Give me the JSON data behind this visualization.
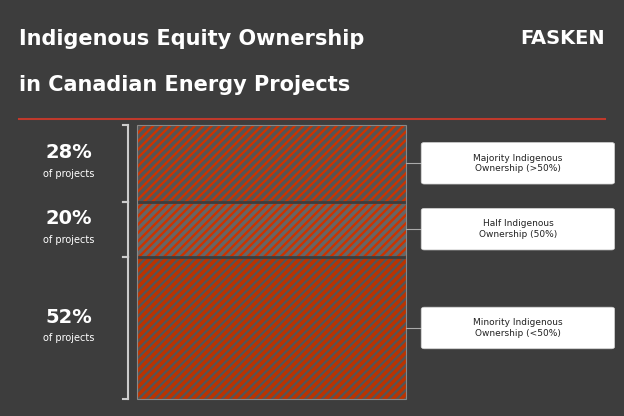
{
  "title_line1": "Indigenous Equity Ownership",
  "title_line2": "in Canadian Energy Projects",
  "brand": "FASKEN",
  "bg_color": "#3d3d3d",
  "title_color": "#ffffff",
  "brand_color": "#ffffff",
  "separator_color": "#c0392b",
  "bar_values": [
    28,
    20,
    52
  ],
  "bar_labels_pct": [
    "28%",
    "20%",
    "52%"
  ],
  "bar_labels_sub": [
    "of projects",
    "of projects",
    "of projects"
  ],
  "bar_annotations": [
    "Majority Indigenous\nOwnership (>50%)",
    "Half Indigenous\nOwnership (50%)",
    "Minority Indigenous\nOwnership (<50%)"
  ],
  "bar_colors_bg": [
    "#cc3300",
    "#cc3300",
    "#555555"
  ],
  "stripe_color_top": "#555555",
  "stripe_color_mid": "#555555",
  "stripe_color_bot": "#cc3300",
  "label_color": "#ffffff",
  "annotation_bg": "#ffffff",
  "annotation_color": "#222222"
}
